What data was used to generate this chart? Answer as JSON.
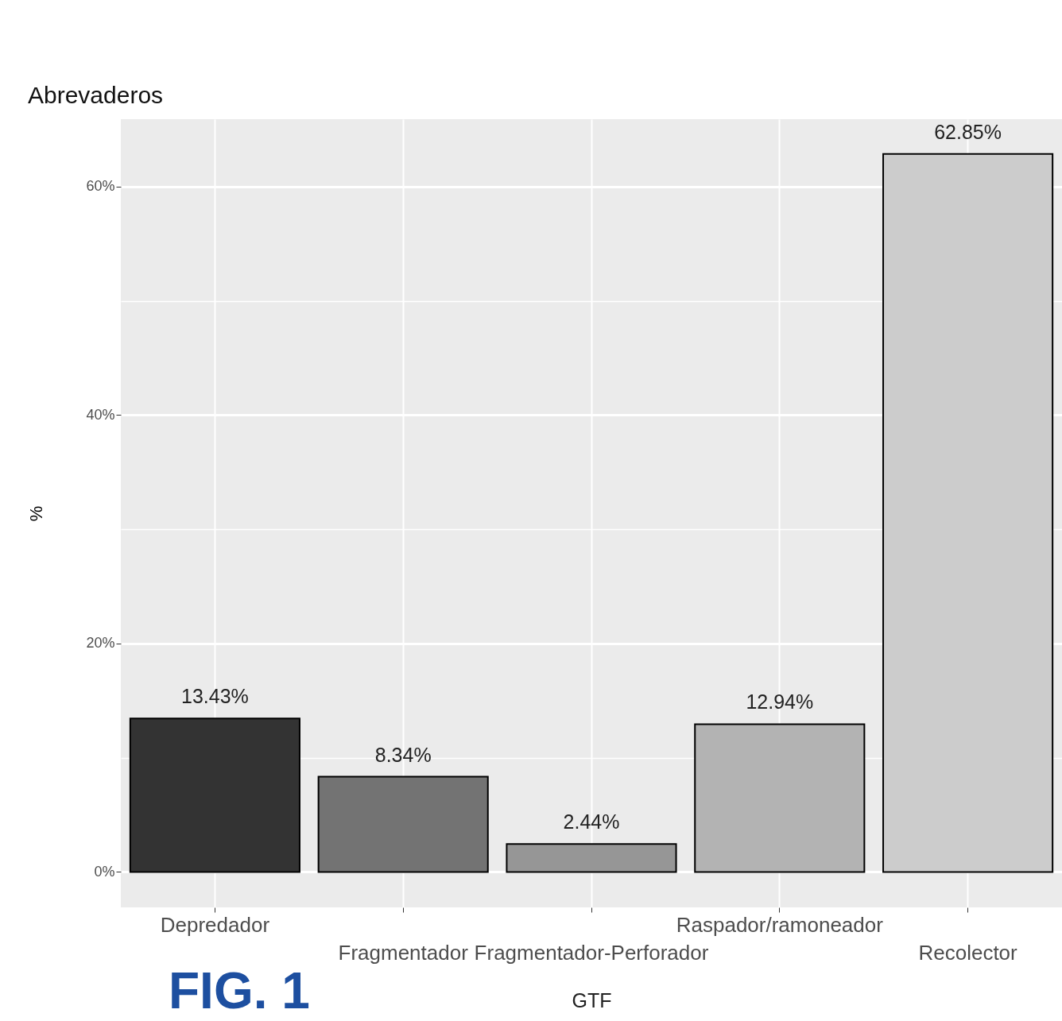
{
  "chart_data": {
    "type": "bar",
    "title": "Abrevaderos",
    "xlabel": "GTF",
    "ylabel": "%",
    "categories": [
      "Depredador",
      "Fragmentador",
      "Fragmentador-Perforador",
      "Raspador/ramoneador",
      "Recolector"
    ],
    "values": [
      13.43,
      8.34,
      2.44,
      12.94,
      62.85
    ],
    "value_labels": [
      "13.43%",
      "8.34%",
      "2.44%",
      "12.94%",
      "62.85%"
    ],
    "colors": [
      "#333333",
      "#737373",
      "#969696",
      "#b3b3b3",
      "#cccccc"
    ],
    "ylim": [
      -3.1,
      65.9
    ],
    "yticks": [
      {
        "value": 0,
        "label": "0%"
      },
      {
        "value": 10,
        "label": null
      },
      {
        "value": 20,
        "label": "20%"
      },
      {
        "value": 30,
        "label": null
      },
      {
        "value": 40,
        "label": "40%"
      },
      {
        "value": 50,
        "label": null
      },
      {
        "value": 60,
        "label": "60%"
      }
    ],
    "grid": true,
    "legend": false,
    "annotations": [
      "FIG. 1"
    ]
  }
}
